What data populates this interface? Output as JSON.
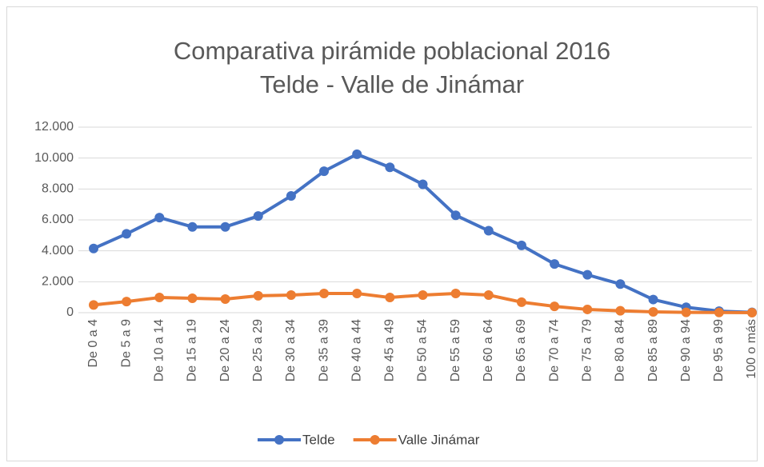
{
  "chart_data": {
    "type": "line",
    "title": [
      "Comparativa pirámide poblacional 2016",
      "Telde - Valle de Jinámar"
    ],
    "categories": [
      "De 0 a 4",
      "De 5 a 9",
      "De 10 a 14",
      "De 15 a 19",
      "De 20 a 24",
      "De 25 a 29",
      "De 30 a 34",
      "De 35 a 39",
      "De 40 a 44",
      "De 45 a 49",
      "De 50 a 54",
      "De 55 a 59",
      "De 60 a 64",
      "De 65 a 69",
      "De 70 a 74",
      "De 75 a 79",
      "De 80 a 84",
      "De 85 a 89",
      "De 90 a 94",
      "De 95 a 99",
      "100 o más"
    ],
    "series": [
      {
        "name": "Telde",
        "color": "#4472c4",
        "values": [
          4150,
          5100,
          6150,
          5550,
          5550,
          6250,
          7550,
          9150,
          10250,
          9400,
          8300,
          6300,
          5300,
          4350,
          3150,
          2450,
          1850,
          850,
          350,
          100,
          20
        ]
      },
      {
        "name": "Valle Jinámar",
        "color": "#ed7d31",
        "values": [
          500,
          720,
          980,
          930,
          880,
          1090,
          1140,
          1240,
          1240,
          980,
          1140,
          1240,
          1140,
          680,
          410,
          210,
          120,
          50,
          20,
          10,
          2
        ]
      }
    ],
    "ylim": [
      0,
      12000
    ],
    "yticks": [
      0,
      {
        "value": 2000,
        "label": "2.000"
      },
      {
        "value": 4000,
        "label": "4.000"
      },
      {
        "value": 6000,
        "label": "6.000"
      },
      {
        "value": 8000,
        "label": "8.000"
      },
      {
        "value": 10000,
        "label": "10.000"
      },
      {
        "value": 12000,
        "label": "12.000"
      }
    ],
    "grid": true,
    "legend": "bottom"
  }
}
